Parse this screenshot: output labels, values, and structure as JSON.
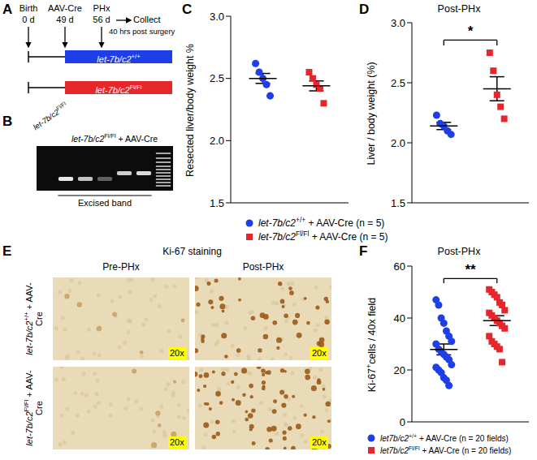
{
  "panel_labels": [
    "A",
    "B",
    "C",
    "D",
    "E",
    "F"
  ],
  "timeline": {
    "events": [
      {
        "label": "Birth",
        "day": "0 d"
      },
      {
        "label": "AAV-Cre",
        "day": "49 d"
      },
      {
        "label": "PHx",
        "day": "56 d"
      }
    ],
    "collect": "Collect",
    "collect_note": "40 hrs post surgery",
    "groups": [
      {
        "name": [
          "let-7b/c2",
          "+/+"
        ],
        "color": "#1f3fe6"
      },
      {
        "name": [
          "let-7b/c2",
          "Fl/Fl"
        ],
        "color": "#e6262b"
      }
    ]
  },
  "gel": {
    "lane_label": [
      "let-7b/c2",
      "Fl/Fl"
    ],
    "group_label": [
      "let-7b/c2",
      "Fl/Fl",
      " + AAV-Cre"
    ],
    "bracket_label": "Excised band"
  },
  "staining": {
    "title": "Ki-67 staining",
    "columns": [
      "Pre-PHx",
      "Post-PHx"
    ],
    "rows": [
      [
        "let-7b/c2",
        "+/+",
        " + AAV-Cre"
      ],
      [
        "let-7b/c2",
        "Fl/Fl",
        " + AAV-Cre"
      ]
    ],
    "magnification": "20x"
  },
  "chart_data": [
    {
      "type": "scatter",
      "y_label": "Resected liver/body weight %",
      "ylim": [
        1.5,
        3
      ],
      "yticks": [
        1.5,
        {
          "value": 2,
          "label": "2.0"
        },
        2.5,
        {
          "value": 3,
          "label": "3.0"
        }
      ],
      "tick_labels": "y",
      "legend": "bottom",
      "series": [
        {
          "name": [
            "let-7b/c2",
            "+/+",
            " + AAV-Cre (n = 5)"
          ],
          "color": "#1f3fe6",
          "marker": "circle",
          "values": [
            2.62,
            2.55,
            2.5,
            2.45,
            2.36
          ],
          "mean": 2.5,
          "sem": 0.04
        },
        {
          "name": [
            "let-7b/c2",
            "Fl/Fl",
            " + AAV-Cre (n = 5)"
          ],
          "color": "#e6262b",
          "marker": "square",
          "values": [
            2.55,
            2.5,
            2.45,
            2.42,
            2.3
          ],
          "mean": 2.44,
          "sem": 0.04
        }
      ]
    },
    {
      "type": "scatter",
      "title": "Post-PHx",
      "y_label": "Liver / body weight (%)",
      "ylim": [
        1.5,
        3
      ],
      "yticks": [
        1.5,
        {
          "value": 2,
          "label": "2.0"
        },
        2.5,
        {
          "value": 3,
          "label": "3.0"
        }
      ],
      "tick_labels": "y",
      "significance": "*",
      "series": [
        {
          "name": [
            "let-7b/c2",
            "+/+",
            " + AAV-Cre (n = 5)"
          ],
          "color": "#1f3fe6",
          "marker": "circle",
          "values": [
            2.23,
            2.16,
            2.14,
            2.1,
            2.07
          ],
          "mean": 2.14,
          "sem": 0.03
        },
        {
          "name": [
            "let-7b/c2",
            "Fl/Fl",
            " + AAV-Cre (n = 5)"
          ],
          "color": "#e6262b",
          "marker": "square",
          "values": [
            2.75,
            2.6,
            2.4,
            2.3,
            2.2
          ],
          "mean": 2.45,
          "sem": 0.1
        }
      ]
    },
    {
      "type": "scatter",
      "title": "Post-PHx",
      "y_label": [
        "Ki-67",
        "+",
        "cells / 40x field"
      ],
      "ylim": [
        0,
        60
      ],
      "yticks": [
        0,
        20,
        40,
        60
      ],
      "tick_labels": "y",
      "legend": "bottom",
      "significance": "**",
      "series": [
        {
          "name": [
            "let7b/c2",
            "+/+",
            " + AAV-Cre (n = 20 fields)"
          ],
          "color": "#1f3fe6",
          "marker": "circle",
          "values": [
            47,
            45,
            40,
            38,
            35,
            33,
            31,
            30,
            28,
            27,
            26,
            25,
            24,
            22,
            21,
            20,
            19,
            17,
            16,
            14
          ],
          "mean": 27.9,
          "sem": 2.1
        },
        {
          "name": [
            "let7b/c2",
            "Fl/Fl",
            " + AAV-Cre (n = 20 fields)"
          ],
          "color": "#e6262b",
          "marker": "square",
          "values": [
            51,
            50,
            49,
            48,
            46,
            45,
            43,
            42,
            41,
            40,
            39,
            38,
            37,
            36,
            33,
            31,
            30,
            29,
            28,
            23
          ],
          "mean": 39,
          "sem": 1.9
        }
      ]
    }
  ]
}
